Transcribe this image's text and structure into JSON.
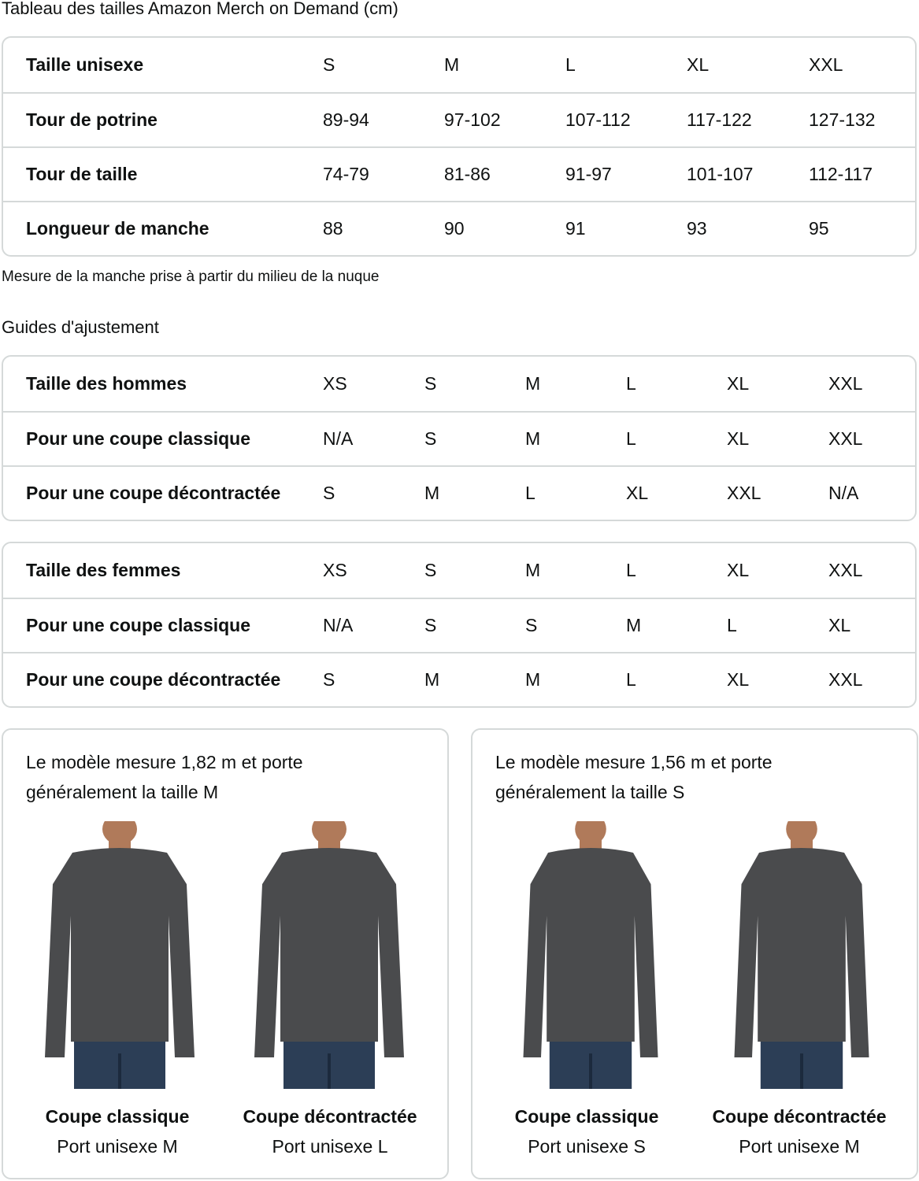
{
  "size_chart": {
    "title": "Tableau des tailles Amazon Merch on Demand (cm)",
    "rows": [
      {
        "label": "Taille unisexe",
        "values": [
          "S",
          "M",
          "L",
          "XL",
          "XXL"
        ]
      },
      {
        "label": "Tour de potrine",
        "values": [
          "89-94",
          "97-102",
          "107-112",
          "117-122",
          "127-132"
        ]
      },
      {
        "label": "Tour de taille",
        "values": [
          "74-79",
          "81-86",
          "91-97",
          "101-107",
          "112-117"
        ]
      },
      {
        "label": "Longueur de manche",
        "values": [
          "88",
          "90",
          "91",
          "93",
          "95"
        ]
      }
    ],
    "note": "Mesure de la manche prise à partir du milieu de la nuque"
  },
  "fit_guides": {
    "title": "Guides d'ajustement",
    "men": [
      {
        "label": "Taille des hommes",
        "values": [
          "XS",
          "S",
          "M",
          "L",
          "XL",
          "XXL"
        ]
      },
      {
        "label": "Pour une coupe classique",
        "values": [
          "N/A",
          "S",
          "M",
          "L",
          "XL",
          "XXL"
        ]
      },
      {
        "label": "Pour une coupe décontractée",
        "values": [
          "S",
          "M",
          "L",
          "XL",
          "XXL",
          "N/A"
        ]
      }
    ],
    "women": [
      {
        "label": "Taille des femmes",
        "values": [
          "XS",
          "S",
          "M",
          "L",
          "XL",
          "XXL"
        ]
      },
      {
        "label": "Pour une coupe classique",
        "values": [
          "N/A",
          "S",
          "S",
          "M",
          "L",
          "XL"
        ]
      },
      {
        "label": "Pour une coupe décontractée",
        "values": [
          "S",
          "M",
          "M",
          "L",
          "XL",
          "XXL"
        ]
      }
    ]
  },
  "models": [
    {
      "caption": "Le modèle mesure 1,82 m et porte généralement la taille M",
      "figures": [
        {
          "name": "Coupe classique",
          "sub": "Port unisexe M"
        },
        {
          "name": "Coupe décontractée",
          "sub": "Port unisexe L"
        }
      ]
    },
    {
      "caption": "Le modèle mesure 1,56 m et porte généralement la taille S",
      "figures": [
        {
          "name": "Coupe classique",
          "sub": "Port unisexe S"
        },
        {
          "name": "Coupe décontractée",
          "sub": "Port unisexe M"
        }
      ]
    }
  ],
  "colors": {
    "border": "#d5d9d9",
    "shirt": "#4a4b4d",
    "jeans": "#2c3e56",
    "skin": "#b07a5a"
  }
}
